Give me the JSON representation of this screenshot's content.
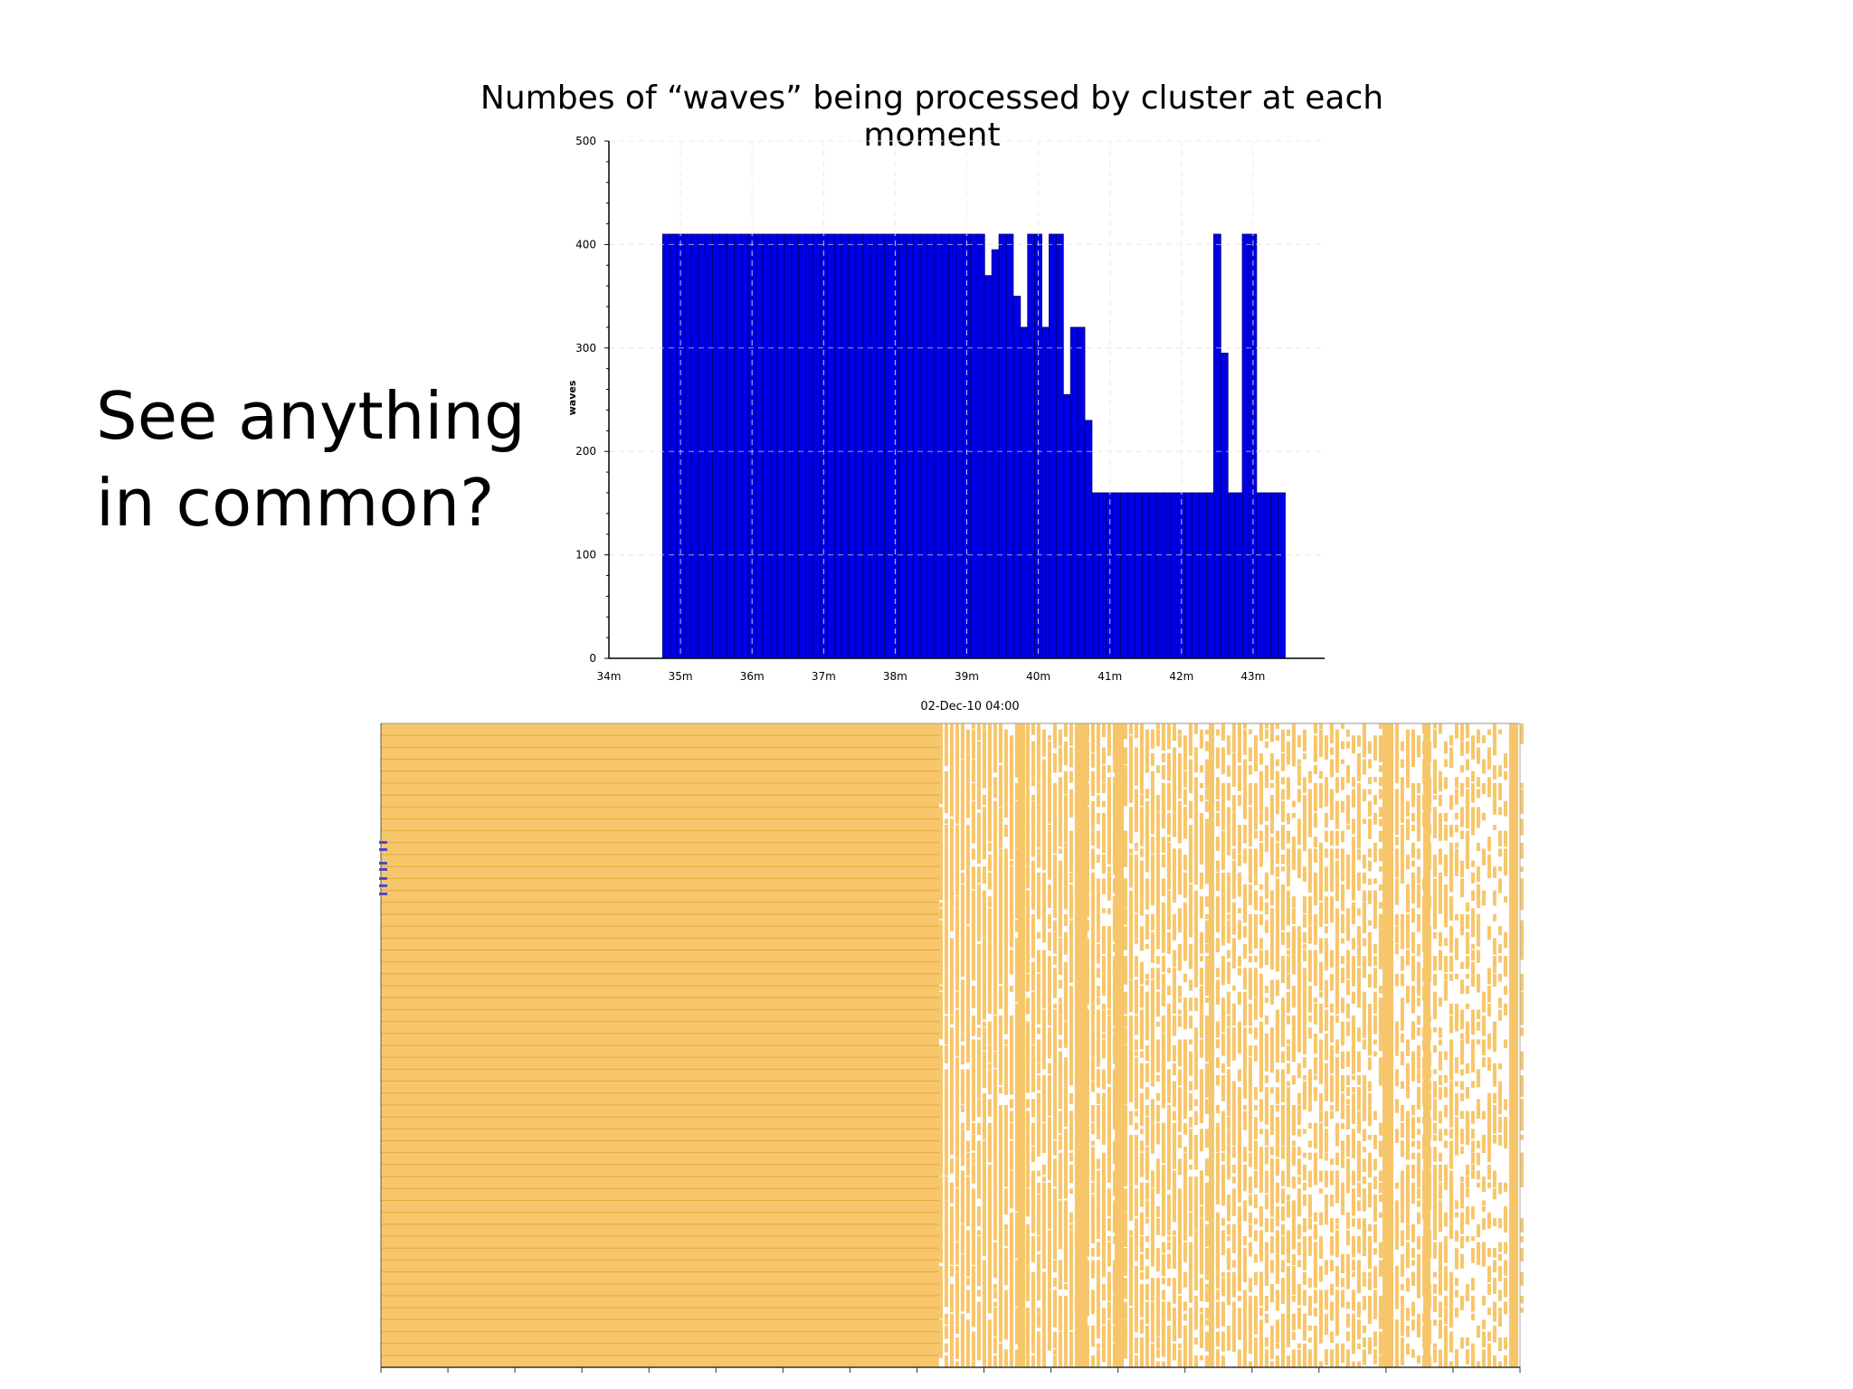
{
  "slide": {
    "question_line1": "See anything",
    "question_line2": "in common?"
  },
  "chart_data": [
    {
      "type": "bar",
      "title": "Numbes of “waves” being processed by cluster at each moment",
      "xlabel": "02-Dec-10 04:00",
      "ylabel": "waves",
      "x_unit": "minutes",
      "xlim": [
        34,
        44
      ],
      "ylim": [
        0,
        500
      ],
      "x_ticks": [
        34,
        35,
        36,
        37,
        38,
        39,
        40,
        41,
        42,
        43
      ],
      "x_tick_labels": [
        "34m",
        "35m",
        "36m",
        "37m",
        "38m",
        "39m",
        "40m",
        "41m",
        "42m",
        "43m"
      ],
      "y_ticks": [
        0,
        100,
        200,
        300,
        400,
        500
      ],
      "y_tick_labels": [
        "0",
        "100",
        "200",
        "300",
        "400",
        "500"
      ],
      "grid": true,
      "bar_color": "#0000e6",
      "edge_color": "#000066",
      "series": [
        {
          "x_start": 34.75,
          "bin_width": 0.1,
          "values": [
            410,
            410,
            410,
            410,
            410,
            410,
            410,
            410,
            410,
            410,
            410,
            410,
            410,
            410,
            410,
            410,
            410,
            410,
            410,
            410,
            410,
            410,
            410,
            410,
            410,
            410,
            410,
            410,
            410,
            410,
            410,
            410,
            410,
            410,
            410,
            410,
            410,
            410,
            410,
            410,
            410,
            410,
            410,
            410,
            410,
            370,
            395,
            410,
            410,
            350,
            320,
            410,
            410,
            320,
            410,
            410,
            255,
            320,
            320,
            230,
            160,
            160,
            160,
            160,
            160,
            160,
            160,
            160,
            160,
            160,
            160,
            160,
            160,
            160,
            160,
            160,
            160,
            410,
            295,
            160,
            160,
            410,
            410,
            160,
            160,
            160,
            160
          ]
        }
      ]
    },
    {
      "type": "heatmap",
      "title": "",
      "xlabel": "",
      "ylabel": "",
      "rows": 54,
      "cell_color": "#f7c66b",
      "row_line_color": "#e6a83c",
      "x_ticks_count": 17,
      "dense_fraction": 0.49,
      "markers_color": "#4a4ad0"
    }
  ]
}
